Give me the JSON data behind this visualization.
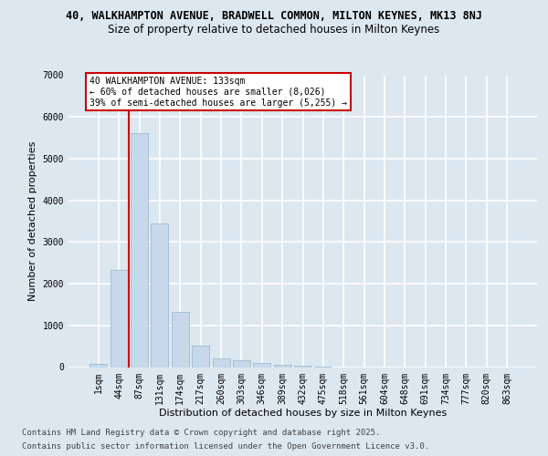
{
  "title_line1": "40, WALKHAMPTON AVENUE, BRADWELL COMMON, MILTON KEYNES, MK13 8NJ",
  "title_line2": "Size of property relative to detached houses in Milton Keynes",
  "xlabel": "Distribution of detached houses by size in Milton Keynes",
  "ylabel": "Number of detached properties",
  "categories": [
    "1sqm",
    "44sqm",
    "87sqm",
    "131sqm",
    "174sqm",
    "217sqm",
    "260sqm",
    "303sqm",
    "346sqm",
    "389sqm",
    "432sqm",
    "475sqm",
    "518sqm",
    "561sqm",
    "604sqm",
    "648sqm",
    "691sqm",
    "734sqm",
    "777sqm",
    "820sqm",
    "863sqm"
  ],
  "values": [
    70,
    2320,
    5600,
    3450,
    1320,
    520,
    210,
    175,
    95,
    55,
    40,
    8,
    0,
    0,
    0,
    0,
    0,
    0,
    0,
    0,
    0
  ],
  "bar_color": "#c8d8ea",
  "bar_edge_color": "#93b4cc",
  "vline_color": "#cc0000",
  "vline_xindex": 1.5,
  "annotation_text": "40 WALKHAMPTON AVENUE: 133sqm\n← 60% of detached houses are smaller (8,026)\n39% of semi-detached houses are larger (5,255) →",
  "annotation_box_edgecolor": "#cc0000",
  "annotation_fill": "#ffffff",
  "ylim": [
    0,
    7000
  ],
  "yticks": [
    0,
    1000,
    2000,
    3000,
    4000,
    5000,
    6000,
    7000
  ],
  "bg_color": "#dce7f0",
  "grid_color": "#ffffff",
  "footer_line1": "Contains HM Land Registry data © Crown copyright and database right 2025.",
  "footer_line2": "Contains public sector information licensed under the Open Government Licence v3.0.",
  "title_fontsize": 8.5,
  "subtitle_fontsize": 8.5,
  "axis_label_fontsize": 8,
  "tick_fontsize": 7,
  "footer_fontsize": 6.5
}
